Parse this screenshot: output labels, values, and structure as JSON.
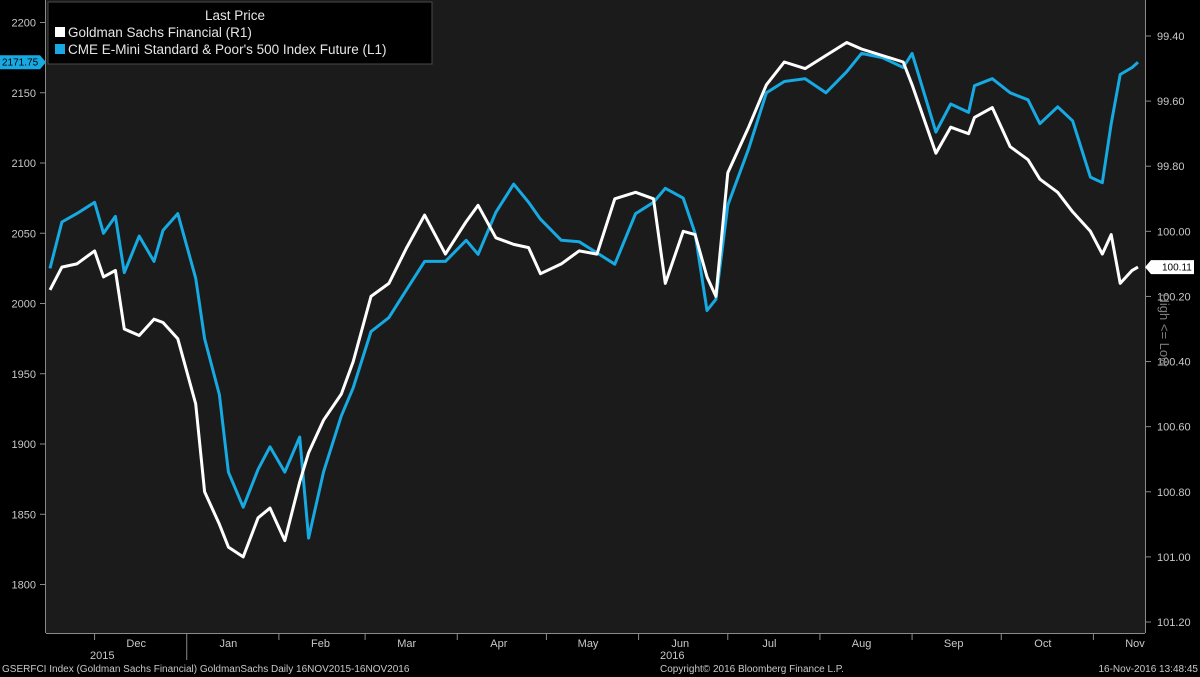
{
  "chart_data": {
    "type": "line",
    "legend": {
      "title": "Last Price",
      "placement": "top-left",
      "entries": [
        {
          "name": "Goldman Sachs Financial  (R1)",
          "color": "#ffffff"
        },
        {
          "name": "CME E-Mini Standard & Poor's 500 Index Future  (L1)",
          "color": "#17a9e1"
        }
      ]
    },
    "left_axis": {
      "ticks": [
        "2200",
        "2150",
        "2100",
        "2050",
        "2000",
        "1950",
        "1900",
        "1850",
        "1800"
      ],
      "min": 1765,
      "max": 2210
    },
    "right_axis": {
      "ticks": [
        "99.40",
        "99.60",
        "99.80",
        "100.00",
        "100.20",
        "100.40",
        "100.60",
        "100.80",
        "101.00",
        "101.20"
      ],
      "inverted": true,
      "label": "High <= Low"
    },
    "x_axis": {
      "months": [
        "Dec",
        "Jan",
        "Feb",
        "Mar",
        "Apr",
        "May",
        "Jun",
        "Jul",
        "Aug",
        "Sep",
        "Oct",
        "Nov"
      ],
      "years": [
        "2015",
        "2016"
      ]
    },
    "last_values": {
      "left": "2171.75",
      "right": "100.11"
    },
    "grid": false,
    "series": [
      {
        "name": "CME E-Mini Standard & Poor's 500 Index Future  (L1)",
        "axis": "left",
        "color": "#17a9e1",
        "x": [
          "2015-11-16",
          "2015-11-20",
          "2015-11-25",
          "2015-12-01",
          "2015-12-04",
          "2015-12-08",
          "2015-12-11",
          "2015-12-16",
          "2015-12-21",
          "2015-12-24",
          "2015-12-29",
          "2016-01-04",
          "2016-01-07",
          "2016-01-12",
          "2016-01-15",
          "2016-01-20",
          "2016-01-25",
          "2016-01-29",
          "2016-02-03",
          "2016-02-08",
          "2016-02-11",
          "2016-02-16",
          "2016-02-22",
          "2016-02-26",
          "2016-03-03",
          "2016-03-09",
          "2016-03-15",
          "2016-03-21",
          "2016-03-28",
          "2016-04-04",
          "2016-04-08",
          "2016-04-14",
          "2016-04-20",
          "2016-04-25",
          "2016-04-29",
          "2016-05-06",
          "2016-05-12",
          "2016-05-18",
          "2016-05-24",
          "2016-05-31",
          "2016-06-06",
          "2016-06-10",
          "2016-06-16",
          "2016-06-20",
          "2016-06-24",
          "2016-06-27",
          "2016-07-01",
          "2016-07-08",
          "2016-07-14",
          "2016-07-20",
          "2016-07-27",
          "2016-08-03",
          "2016-08-10",
          "2016-08-15",
          "2016-08-22",
          "2016-08-29",
          "2016-09-01",
          "2016-09-09",
          "2016-09-14",
          "2016-09-20",
          "2016-09-22",
          "2016-09-28",
          "2016-10-04",
          "2016-10-10",
          "2016-10-14",
          "2016-10-20",
          "2016-10-25",
          "2016-10-31",
          "2016-11-04",
          "2016-11-07",
          "2016-11-10",
          "2016-11-14",
          "2016-11-16"
        ],
        "values": [
          2025,
          2058,
          2064,
          2072,
          2050,
          2062,
          2022,
          2048,
          2030,
          2052,
          2064,
          2018,
          1975,
          1935,
          1880,
          1855,
          1882,
          1898,
          1880,
          1905,
          1833,
          1880,
          1920,
          1940,
          1980,
          1990,
          2010,
          2030,
          2030,
          2045,
          2035,
          2065,
          2085,
          2072,
          2060,
          2045,
          2044,
          2036,
          2028,
          2064,
          2072,
          2082,
          2075,
          2050,
          1995,
          2003,
          2070,
          2110,
          2150,
          2158,
          2160,
          2150,
          2165,
          2178,
          2175,
          2168,
          2178,
          2122,
          2142,
          2136,
          2155,
          2160,
          2150,
          2145,
          2128,
          2140,
          2130,
          2090,
          2086,
          2128,
          2163,
          2168,
          2171.75
        ]
      },
      {
        "name": "Goldman Sachs Financial  (R1)",
        "axis": "right",
        "color": "#ffffff",
        "x": [
          "2015-11-16",
          "2015-11-20",
          "2015-11-25",
          "2015-12-01",
          "2015-12-04",
          "2015-12-08",
          "2015-12-11",
          "2015-12-16",
          "2015-12-21",
          "2015-12-24",
          "2015-12-29",
          "2016-01-04",
          "2016-01-07",
          "2016-01-12",
          "2016-01-15",
          "2016-01-20",
          "2016-01-25",
          "2016-01-29",
          "2016-02-03",
          "2016-02-08",
          "2016-02-11",
          "2016-02-16",
          "2016-02-22",
          "2016-02-26",
          "2016-03-03",
          "2016-03-09",
          "2016-03-15",
          "2016-03-21",
          "2016-03-28",
          "2016-04-04",
          "2016-04-08",
          "2016-04-14",
          "2016-04-20",
          "2016-04-25",
          "2016-04-29",
          "2016-05-06",
          "2016-05-12",
          "2016-05-18",
          "2016-05-24",
          "2016-05-31",
          "2016-06-06",
          "2016-06-10",
          "2016-06-16",
          "2016-06-20",
          "2016-06-24",
          "2016-06-27",
          "2016-07-01",
          "2016-07-08",
          "2016-07-14",
          "2016-07-20",
          "2016-07-27",
          "2016-08-03",
          "2016-08-10",
          "2016-08-15",
          "2016-08-22",
          "2016-08-29",
          "2016-09-01",
          "2016-09-09",
          "2016-09-14",
          "2016-09-20",
          "2016-09-22",
          "2016-09-28",
          "2016-10-04",
          "2016-10-10",
          "2016-10-14",
          "2016-10-20",
          "2016-10-25",
          "2016-10-31",
          "2016-11-04",
          "2016-11-07",
          "2016-11-10",
          "2016-11-14",
          "2016-11-16"
        ],
        "values": [
          100.18,
          100.11,
          100.1,
          100.06,
          100.14,
          100.12,
          100.3,
          100.32,
          100.27,
          100.28,
          100.33,
          100.53,
          100.8,
          100.9,
          100.97,
          101.0,
          100.88,
          100.85,
          100.95,
          100.77,
          100.68,
          100.58,
          100.5,
          100.4,
          100.2,
          100.16,
          100.05,
          99.95,
          100.07,
          99.97,
          99.92,
          100.02,
          100.04,
          100.05,
          100.13,
          100.1,
          100.06,
          100.07,
          99.9,
          99.88,
          99.9,
          100.16,
          100.0,
          100.01,
          100.14,
          100.2,
          99.82,
          99.68,
          99.55,
          99.48,
          99.5,
          99.46,
          99.42,
          99.44,
          99.46,
          99.48,
          99.55,
          99.76,
          99.68,
          99.7,
          99.65,
          99.62,
          99.74,
          99.78,
          99.84,
          99.88,
          99.94,
          100.0,
          100.07,
          100.01,
          100.16,
          100.12,
          100.11
        ]
      }
    ]
  },
  "footer": {
    "left": "GSERFCI Index (Goldman Sachs Financial) GoldmanSachs  Daily 16NOV2015-16NOV2016",
    "center": "Copyright© 2016 Bloomberg Finance L.P.",
    "right": "16-Nov-2016 13:48:45"
  }
}
